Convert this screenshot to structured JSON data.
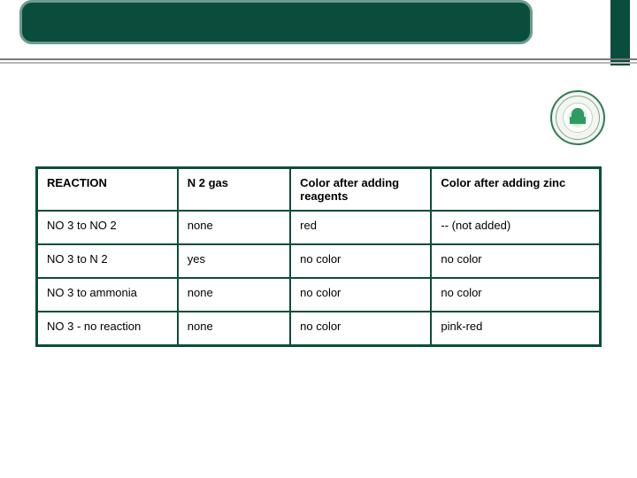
{
  "colors": {
    "brand_green": "#0b4d3c",
    "brand_green_light": "#6b9c8f",
    "line_gray": "#7a7a7a",
    "line_gray_light": "#b8b8b8",
    "background": "#ffffff",
    "text": "#000000"
  },
  "table": {
    "type": "table",
    "border_color": "#0b4d3c",
    "border_width": 2,
    "outer_border_width": 3,
    "font_size": 13,
    "columns": [
      {
        "label": "REACTION",
        "width_pct": 25
      },
      {
        "label": "N 2 gas",
        "width_pct": 20
      },
      {
        "label": "Color after adding reagents",
        "width_pct": 25
      },
      {
        "label": "Color after adding zinc",
        "width_pct": 30
      }
    ],
    "rows": [
      [
        "NO 3 to NO 2",
        "none",
        "red",
        "-- (not added)"
      ],
      [
        "NO 3 to N 2",
        "yes",
        "no color",
        "no color"
      ],
      [
        "NO 3 to ammonia",
        "none",
        "no color",
        "no color"
      ],
      [
        "NO 3 - no reaction",
        "none",
        "no color",
        "pink-red"
      ]
    ]
  }
}
